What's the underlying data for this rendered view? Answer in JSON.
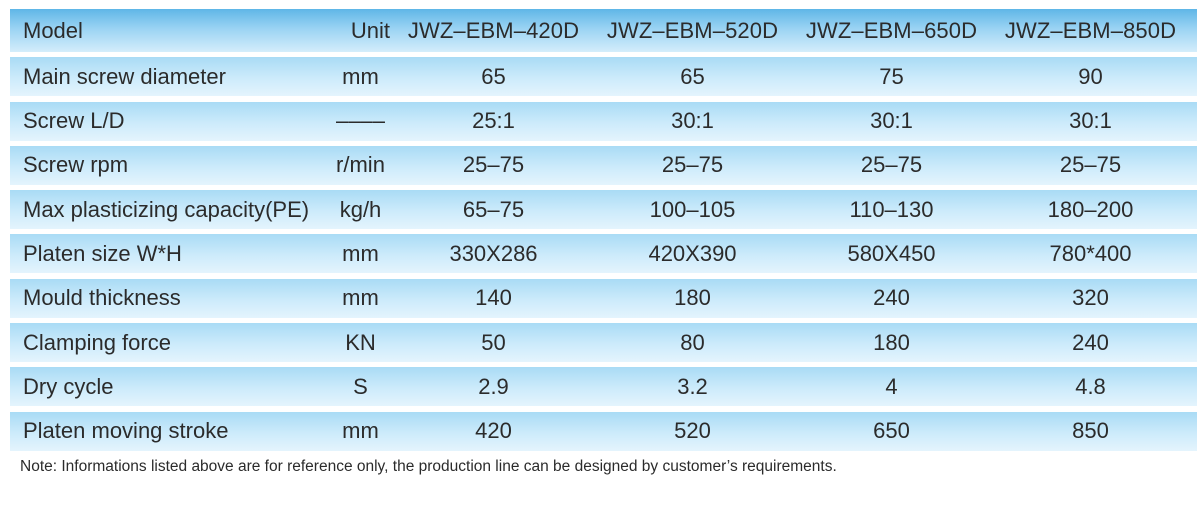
{
  "table": {
    "header": {
      "parameter": "Model",
      "unit": "Unit",
      "models": [
        "JWZ–EBM–420D",
        "JWZ–EBM–520D",
        "JWZ–EBM–650D",
        "JWZ–EBM–850D"
      ]
    },
    "rows": [
      {
        "parameter": "Main screw diameter",
        "unit": "mm",
        "values": [
          "65",
          "65",
          "75",
          "90"
        ]
      },
      {
        "parameter": "Screw L/D",
        "unit": "––––",
        "values": [
          "25:1",
          "30:1",
          "30:1",
          "30:1"
        ]
      },
      {
        "parameter": "Screw rpm",
        "unit": "r/min",
        "values": [
          "25–75",
          "25–75",
          "25–75",
          "25–75"
        ]
      },
      {
        "parameter": "Max plasticizing capacity(PE)",
        "unit": "kg/h",
        "values": [
          "65–75",
          "100–105",
          "110–130",
          "180–200"
        ]
      },
      {
        "parameter": "Platen size W*H",
        "unit": "mm",
        "values": [
          "330X286",
          "420X390",
          "580X450",
          "780*400"
        ]
      },
      {
        "parameter": "Mould thickness",
        "unit": "mm",
        "values": [
          "140",
          "180",
          "240",
          "320"
        ]
      },
      {
        "parameter": "Clamping force",
        "unit": "KN",
        "values": [
          "50",
          "80",
          "180",
          "240"
        ]
      },
      {
        "parameter": "Dry cycle",
        "unit": "S",
        "values": [
          "2.9",
          "3.2",
          "4",
          "4.8"
        ]
      },
      {
        "parameter": "Platen moving stroke",
        "unit": "mm",
        "values": [
          "420",
          "520",
          "650",
          "850"
        ]
      }
    ]
  },
  "note": "Note: Informations listed above are for reference only, the production line can be designed by customer’s requirements.",
  "colors": {
    "header_gradient_top": "#5fb6e7",
    "row_gradient_top": "#a9dbf5",
    "text": "#2b2b2b"
  }
}
